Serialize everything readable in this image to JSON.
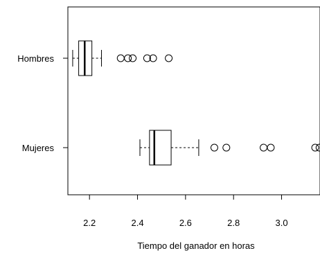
{
  "chart_data": {
    "type": "boxplot",
    "orientation": "horizontal",
    "title": "",
    "xlabel": "Tiempo del ganador en horas",
    "ylabel": "",
    "xlim": [
      2.11,
      3.16
    ],
    "x_ticks": [
      2.2,
      2.4,
      2.6,
      2.8,
      3.0
    ],
    "x_tick_labels": [
      "2.2",
      "2.4",
      "2.6",
      "2.8",
      "3.0"
    ],
    "grid": false,
    "legend": "none",
    "groups": [
      {
        "label": "Hombres",
        "whisker_low": 2.13,
        "q1": 2.155,
        "median": 2.18,
        "q3": 2.21,
        "whisker_high": 2.25,
        "outliers": [
          2.33,
          2.36,
          2.38,
          2.44,
          2.465,
          2.53
        ]
      },
      {
        "label": "Mujeres",
        "whisker_low": 2.41,
        "q1": 2.45,
        "median": 2.47,
        "q3": 2.54,
        "whisker_high": 2.655,
        "outliers": [
          2.72,
          2.77,
          2.925,
          2.955,
          3.14,
          3.158
        ]
      }
    ]
  }
}
